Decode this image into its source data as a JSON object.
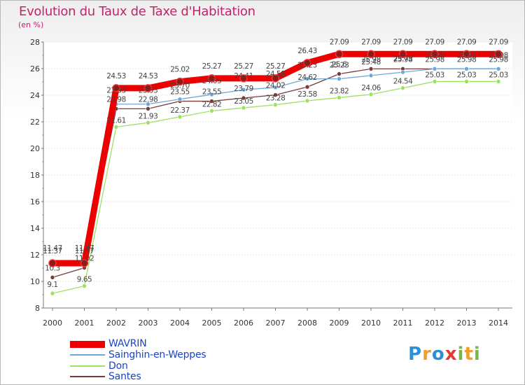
{
  "header": {
    "title": "Evolution du Taux de Taxe d'Habitation",
    "unit": "(en %)"
  },
  "chart_data": {
    "type": "line",
    "title": "Evolution du Taux de Taxe d'Habitation",
    "ylabel": "(en %)",
    "xlabel": "",
    "x": [
      2000,
      2001,
      2002,
      2003,
      2004,
      2005,
      2006,
      2007,
      2008,
      2009,
      2010,
      2011,
      2012,
      2013,
      2014
    ],
    "ylim": [
      8,
      28
    ],
    "yticks": [
      8,
      10,
      12,
      14,
      16,
      18,
      20,
      22,
      24,
      26,
      28
    ],
    "grid": "horizontal dotted",
    "series": [
      {
        "name": "WAVRIN",
        "color": "#ee0000",
        "values": [
          11.37,
          11.37,
          24.53,
          24.53,
          25.02,
          25.27,
          25.27,
          25.27,
          26.43,
          27.09,
          27.09,
          27.09,
          27.09,
          27.09,
          27.09
        ],
        "labels": [
          "11.37",
          "11.37",
          "24.53",
          "24.53",
          "25.02",
          "25.27",
          "25.27",
          "25.27",
          "26.43",
          "27.09",
          "27.09",
          "27.09",
          "27.09",
          "27.09",
          "27.09"
        ]
      },
      {
        "name": "Sainghin-en-Weppes",
        "color": "#6fa7d6",
        "values": [
          11.47,
          11.47,
          23.33,
          23.33,
          23.7,
          24.05,
          24.41,
          24.58,
          25.23,
          25.23,
          25.48,
          25.73,
          25.98,
          25.98,
          25.98
        ],
        "labels": [
          "11.47",
          "11.47",
          "23.33",
          "23.33",
          "23.70",
          "24.05",
          "24.41",
          "24.58",
          "25.23",
          "25.23",
          "25.48",
          "25.73",
          "25.98",
          "25.98",
          "25.98"
        ]
      },
      {
        "name": "Don",
        "color": "#9ee060",
        "values": [
          9.1,
          9.65,
          21.61,
          21.93,
          22.37,
          22.82,
          23.05,
          23.28,
          23.58,
          23.82,
          24.06,
          24.54,
          25.03,
          25.03,
          25.03
        ],
        "labels": [
          "9.1",
          "9.65",
          "21.61",
          "21.93",
          "22.37",
          "22.82",
          "23.05",
          "23.28",
          "23.58",
          "23.82",
          "24.06",
          "24.54",
          "25.03",
          "25.03",
          "25.03"
        ]
      },
      {
        "name": "Santes",
        "color": "#7a3b3b",
        "values": [
          10.3,
          11.02,
          22.98,
          22.98,
          23.55,
          23.55,
          23.79,
          24.02,
          24.62,
          25.6,
          25.98,
          25.98,
          25.98,
          25.98,
          25.98
        ],
        "labels": [
          "10.3",
          "11.02",
          "22.98",
          "22.98",
          "23.55",
          "23.55",
          "23.79",
          "24.02",
          "24.62",
          "25.6",
          "25.98",
          "25.98",
          "25.98",
          "25.98",
          "25.98"
        ]
      }
    ]
  },
  "legend": [
    {
      "label": "WAVRIN",
      "color": "#ee0000",
      "thick": true
    },
    {
      "label": "Sainghin-en-Weppes",
      "color": "#6fa7d6",
      "thick": false
    },
    {
      "label": "Don",
      "color": "#9ee060",
      "thick": false
    },
    {
      "label": "Santes",
      "color": "#7a3b3b",
      "thick": false
    }
  ],
  "logo": {
    "letters": [
      "P",
      "r",
      "o",
      "x",
      "i",
      "t",
      "i"
    ],
    "colors": [
      "#2d8fd6",
      "#f09d2b",
      "#2d8fd6",
      "#e5382f",
      "#7ab648",
      "#f09d2b",
      "#7ab648"
    ]
  }
}
